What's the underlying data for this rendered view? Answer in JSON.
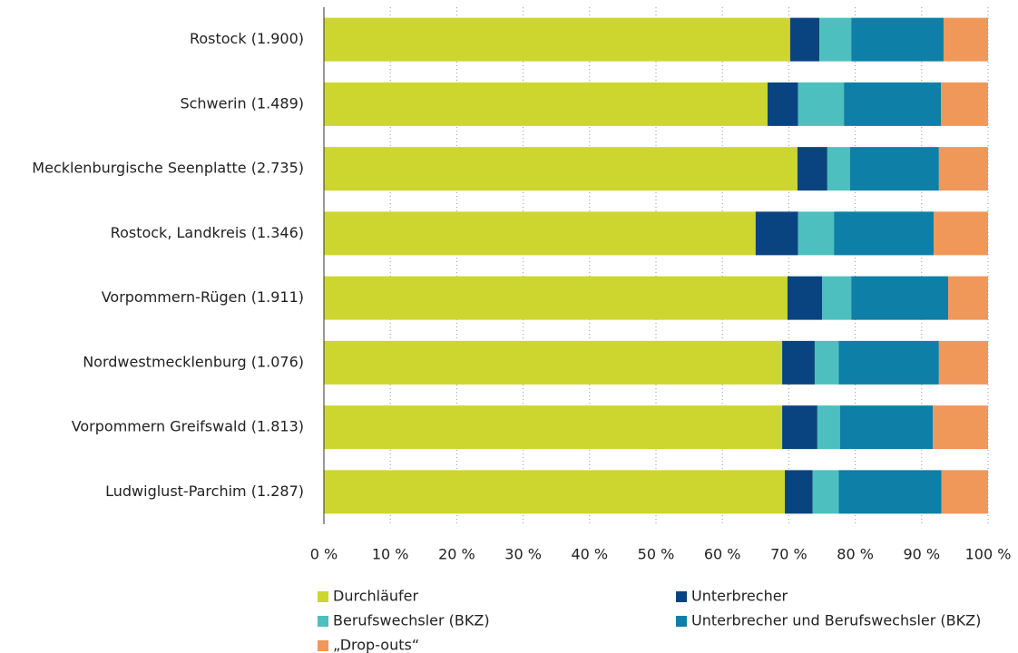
{
  "chart_data": {
    "type": "stacked-barh",
    "categories": [
      "Rostock (1.900)",
      "Schwerin (1.489)",
      "Mecklenburgische Seenplatte (2.735)",
      "Rostock, Landkreis (1.346)",
      "Vorpommern-Rügen (1.911)",
      "Nordwestmecklenburg (1.076)",
      "Vorpommern Greifswald (1.813)",
      "Ludwiglust-Parchim (1.287)"
    ],
    "series": [
      {
        "name": "Durchläufer",
        "color": "#cdd62e",
        "values": [
          70.2,
          66.8,
          71.3,
          65.0,
          69.8,
          69.0,
          69.0,
          69.4
        ]
      },
      {
        "name": "Unterbrecher",
        "color": "#0a4480",
        "values": [
          4.4,
          4.6,
          4.5,
          6.4,
          5.2,
          4.9,
          5.3,
          4.2
        ]
      },
      {
        "name": "Berufswechsler (BKZ)",
        "color": "#4dbfbf",
        "values": [
          4.8,
          6.9,
          3.4,
          5.4,
          4.4,
          3.6,
          3.4,
          3.9
        ]
      },
      {
        "name": "Unterbrecher und Berufswechsler (BKZ)",
        "color": "#0e7fa6",
        "values": [
          13.9,
          14.6,
          13.4,
          15.0,
          14.6,
          15.1,
          14.0,
          15.5
        ]
      },
      {
        "name": "„Drop-outs“",
        "color": "#f0975a",
        "values": [
          6.7,
          7.1,
          7.4,
          8.2,
          6.0,
          7.4,
          8.3,
          7.0
        ]
      }
    ],
    "xlim": [
      0,
      100
    ],
    "xticks": [
      {
        "value": 0,
        "label": "0 %"
      },
      {
        "value": 10,
        "label": "10 %"
      },
      {
        "value": 20,
        "label": "20 %"
      },
      {
        "value": 30,
        "label": "30 %"
      },
      {
        "value": 40,
        "label": "40 %"
      },
      {
        "value": 50,
        "label": "50 %"
      },
      {
        "value": 60,
        "label": "60 %"
      },
      {
        "value": 70,
        "label": "70 %"
      },
      {
        "value": 80,
        "label": "80 %"
      },
      {
        "value": 90,
        "label": "90 %"
      },
      {
        "value": 100,
        "label": "100 %"
      }
    ],
    "grid": true
  }
}
